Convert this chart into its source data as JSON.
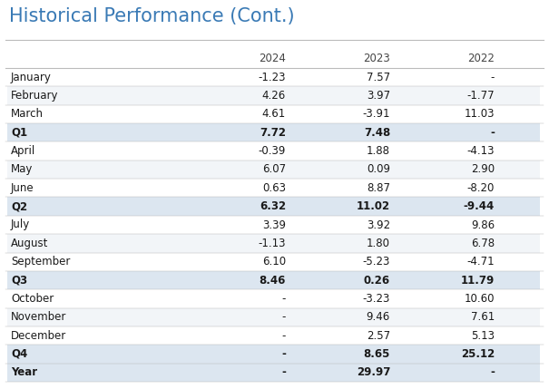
{
  "title": "Historical Performance (Cont.)",
  "columns": [
    "",
    "2024",
    "2023",
    "2022"
  ],
  "rows": [
    [
      "January",
      "-1.23",
      "7.57",
      "-"
    ],
    [
      "February",
      "4.26",
      "3.97",
      "-1.77"
    ],
    [
      "March",
      "4.61",
      "-3.91",
      "11.03"
    ],
    [
      "Q1",
      "7.72",
      "7.48",
      "-"
    ],
    [
      "April",
      "-0.39",
      "1.88",
      "-4.13"
    ],
    [
      "May",
      "6.07",
      "0.09",
      "2.90"
    ],
    [
      "June",
      "0.63",
      "8.87",
      "-8.20"
    ],
    [
      "Q2",
      "6.32",
      "11.02",
      "-9.44"
    ],
    [
      "July",
      "3.39",
      "3.92",
      "9.86"
    ],
    [
      "August",
      "-1.13",
      "1.80",
      "6.78"
    ],
    [
      "September",
      "6.10",
      "-5.23",
      "-4.71"
    ],
    [
      "Q3",
      "8.46",
      "0.26",
      "11.79"
    ],
    [
      "October",
      "-",
      "-3.23",
      "10.60"
    ],
    [
      "November",
      "-",
      "9.46",
      "7.61"
    ],
    [
      "December",
      "-",
      "2.57",
      "5.13"
    ],
    [
      "Q4",
      "-",
      "8.65",
      "25.12"
    ],
    [
      "Year",
      "-",
      "29.97",
      "-"
    ]
  ],
  "quarter_rows": [
    "Q1",
    "Q2",
    "Q3",
    "Q4",
    "Year"
  ],
  "bg_color": "#ffffff",
  "row_alt_color": "#f2f5f8",
  "row_normal_color": "#ffffff",
  "quarter_color": "#dce6f0",
  "text_color": "#1a1a1a",
  "header_text_color": "#444444",
  "title_color": "#3a7ab5",
  "separator_color": "#bbbbbb",
  "title_fontsize": 15,
  "header_fontsize": 8.5,
  "cell_fontsize": 8.5
}
